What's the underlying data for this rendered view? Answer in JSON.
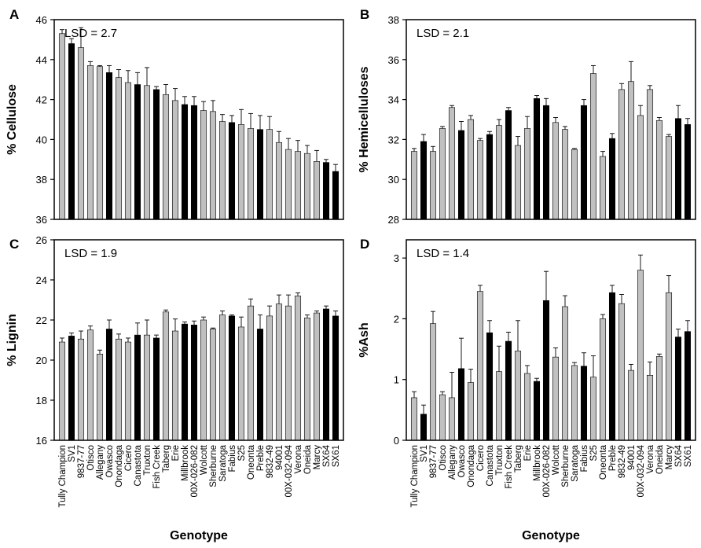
{
  "chart_data": [
    {
      "panel": "A",
      "type": "bar",
      "xlabel": "",
      "ylabel": "% Cellulose",
      "ylim": [
        36,
        46
      ],
      "yticks": [
        36,
        38,
        40,
        42,
        44,
        46
      ],
      "annotation": "LSD = 2.7",
      "show_categories": false,
      "categories": [
        "Tully Champion",
        "SV1",
        "9837-77",
        "Otisco",
        "Allegany",
        "Owasco",
        "Onondaga",
        "Cicero",
        "Canastota",
        "Truxton",
        "Fish Creek",
        "Taberg",
        "Erie",
        "Millbrook",
        "00X-026-082",
        "Wolcott",
        "Sherburne",
        "Saratoga",
        "Fabius",
        "S25",
        "Oneonta",
        "Preble",
        "9832-49",
        "94001",
        "00X-032-094",
        "Verona",
        "Oneida",
        "Marcy",
        "SX64",
        "SX61"
      ],
      "values": [
        45.3,
        44.8,
        44.6,
        43.7,
        43.65,
        43.35,
        43.1,
        42.85,
        42.75,
        42.7,
        42.5,
        42.25,
        41.95,
        41.75,
        41.7,
        41.45,
        41.4,
        40.9,
        40.85,
        40.75,
        40.55,
        40.5,
        40.5,
        39.85,
        39.5,
        39.4,
        39.3,
        38.9,
        38.85,
        38.4
      ],
      "errors": [
        0.2,
        0.25,
        1.0,
        0.2,
        0.05,
        0.35,
        0.4,
        0.6,
        0.6,
        0.9,
        0.15,
        0.5,
        0.6,
        0.4,
        0.45,
        0.45,
        0.55,
        0.35,
        0.35,
        0.75,
        0.75,
        0.7,
        0.65,
        0.55,
        0.55,
        0.55,
        0.4,
        0.55,
        0.15,
        0.35
      ],
      "colors": [
        "gray",
        "black",
        "gray",
        "gray",
        "gray",
        "black",
        "gray",
        "gray",
        "black",
        "gray",
        "black",
        "gray",
        "gray",
        "black",
        "black",
        "gray",
        "gray",
        "gray",
        "black",
        "gray",
        "gray",
        "black",
        "gray",
        "gray",
        "gray",
        "gray",
        "gray",
        "gray",
        "black",
        "black"
      ]
    },
    {
      "panel": "B",
      "type": "bar",
      "xlabel": "",
      "ylabel": "% Hemicelluloses",
      "ylim": [
        28,
        38
      ],
      "yticks": [
        28,
        30,
        32,
        34,
        36,
        38
      ],
      "annotation": "LSD = 2.1",
      "show_categories": false,
      "categories": [
        "Tully Champion",
        "SV1",
        "9837-77",
        "Otisco",
        "Allegany",
        "Owasco",
        "Onondaga",
        "Cicero",
        "Canastota",
        "Truxton",
        "Fish Creek",
        "Taberg",
        "Erie",
        "Millbrook",
        "00X-026-082",
        "Wolcott",
        "Sherburne",
        "Saratoga",
        "Fabius",
        "S25",
        "Oneonta",
        "Preble",
        "9832-49",
        "94001",
        "00X-032-094",
        "Verona",
        "Oneida",
        "Marcy",
        "SX64",
        "SX61"
      ],
      "values": [
        31.4,
        31.9,
        31.4,
        32.55,
        33.6,
        32.45,
        33.0,
        31.95,
        32.25,
        32.7,
        33.45,
        31.7,
        32.55,
        34.05,
        33.7,
        32.85,
        32.5,
        31.5,
        33.7,
        35.3,
        31.15,
        32.05,
        34.5,
        34.9,
        33.2,
        34.5,
        32.95,
        32.15,
        33.05,
        32.75
      ],
      "errors": [
        0.15,
        0.35,
        0.25,
        0.1,
        0.1,
        0.45,
        0.2,
        0.1,
        0.15,
        0.3,
        0.15,
        0.45,
        0.6,
        0.15,
        0.35,
        0.25,
        0.15,
        0.05,
        0.3,
        0.4,
        0.25,
        0.25,
        0.3,
        1.0,
        0.5,
        0.2,
        0.15,
        0.1,
        0.65,
        0.3
      ],
      "colors": [
        "gray",
        "black",
        "gray",
        "gray",
        "gray",
        "black",
        "gray",
        "gray",
        "black",
        "gray",
        "black",
        "gray",
        "gray",
        "black",
        "black",
        "gray",
        "gray",
        "gray",
        "black",
        "gray",
        "gray",
        "black",
        "gray",
        "gray",
        "gray",
        "gray",
        "gray",
        "gray",
        "black",
        "black"
      ]
    },
    {
      "panel": "C",
      "type": "bar",
      "xlabel": "Genotype",
      "ylabel": "% Lignin",
      "ylim": [
        16,
        26
      ],
      "yticks": [
        16,
        18,
        20,
        22,
        24,
        26
      ],
      "annotation": "LSD = 1.9",
      "show_categories": true,
      "categories": [
        "Tully Champion",
        "SV1",
        "9837-77",
        "Otisco",
        "Allegany",
        "Owasco",
        "Onondaga",
        "Cicero",
        "Canastota",
        "Truxton",
        "Fish Creek",
        "Taberg",
        "Erie",
        "Millbrook",
        "00X-026-082",
        "Wolcott",
        "Sherburne",
        "Saratoga",
        "Fabius",
        "S25",
        "Oneonta",
        "Preble",
        "9832-49",
        "94001",
        "00X-032-094",
        "Verona",
        "Oneida",
        "Marcy",
        "SX64",
        "SX61"
      ],
      "values": [
        20.9,
        21.2,
        21.05,
        21.5,
        20.3,
        21.55,
        21.05,
        20.9,
        21.25,
        21.25,
        21.1,
        22.4,
        21.45,
        21.8,
        21.75,
        22.0,
        21.55,
        22.25,
        22.2,
        21.65,
        22.7,
        21.55,
        22.2,
        22.8,
        22.7,
        23.2,
        22.1,
        22.35,
        22.55,
        22.2
      ],
      "errors": [
        0.2,
        0.15,
        0.4,
        0.2,
        0.2,
        0.45,
        0.25,
        0.2,
        0.6,
        0.75,
        0.15,
        0.1,
        0.6,
        0.1,
        0.2,
        0.15,
        0.05,
        0.2,
        0.05,
        0.5,
        0.35,
        0.7,
        0.5,
        0.45,
        0.55,
        0.15,
        0.15,
        0.1,
        0.15,
        0.25
      ],
      "colors": [
        "gray",
        "black",
        "gray",
        "gray",
        "gray",
        "black",
        "gray",
        "gray",
        "black",
        "gray",
        "black",
        "gray",
        "gray",
        "black",
        "black",
        "gray",
        "gray",
        "gray",
        "black",
        "gray",
        "gray",
        "black",
        "gray",
        "gray",
        "gray",
        "gray",
        "gray",
        "gray",
        "black",
        "black"
      ]
    },
    {
      "panel": "D",
      "type": "bar",
      "xlabel": "Genotype",
      "ylabel": "%Ash",
      "ylim": [
        0,
        3.3
      ],
      "yticks": [
        0,
        1,
        2,
        3
      ],
      "annotation": "LSD = 1.4",
      "show_categories": true,
      "categories": [
        "Tully Champion",
        "SV1",
        "9837-77",
        "Otisco",
        "Allegany",
        "Owasco",
        "Onondaga",
        "Cicero",
        "Canastota",
        "Truxton",
        "Fish Creek",
        "Taberg",
        "Erie",
        "Millbrook",
        "00X-026-082",
        "Wolcott",
        "Sherburne",
        "Saratoga",
        "Fabius",
        "S25",
        "Oneonta",
        "Preble",
        "9832-49",
        "94001",
        "00X-032-094",
        "Verona",
        "Oneida",
        "Marcy",
        "SX64",
        "SX61"
      ],
      "values": [
        0.7,
        0.43,
        1.92,
        0.75,
        0.7,
        1.18,
        0.95,
        2.45,
        1.77,
        1.13,
        1.63,
        1.47,
        1.1,
        0.97,
        2.3,
        1.37,
        2.2,
        1.23,
        1.22,
        1.04,
        2.0,
        2.43,
        2.25,
        1.15,
        2.8,
        1.07,
        1.38,
        2.43,
        1.7,
        1.79
      ],
      "errors": [
        0.1,
        0.15,
        0.2,
        0.05,
        0.42,
        0.5,
        0.22,
        0.1,
        0.2,
        0.42,
        0.15,
        0.5,
        0.13,
        0.05,
        0.48,
        0.15,
        0.18,
        0.05,
        0.22,
        0.35,
        0.07,
        0.12,
        0.15,
        0.1,
        0.25,
        0.22,
        0.04,
        0.28,
        0.13,
        0.18
      ],
      "colors": [
        "gray",
        "black",
        "gray",
        "gray",
        "gray",
        "black",
        "gray",
        "gray",
        "black",
        "gray",
        "black",
        "gray",
        "gray",
        "black",
        "black",
        "gray",
        "gray",
        "gray",
        "black",
        "gray",
        "gray",
        "black",
        "gray",
        "gray",
        "gray",
        "gray",
        "gray",
        "gray",
        "black",
        "black"
      ]
    }
  ],
  "palette": {
    "gray": "#c0c0c0",
    "black": "#000000",
    "frame": "#000000"
  }
}
